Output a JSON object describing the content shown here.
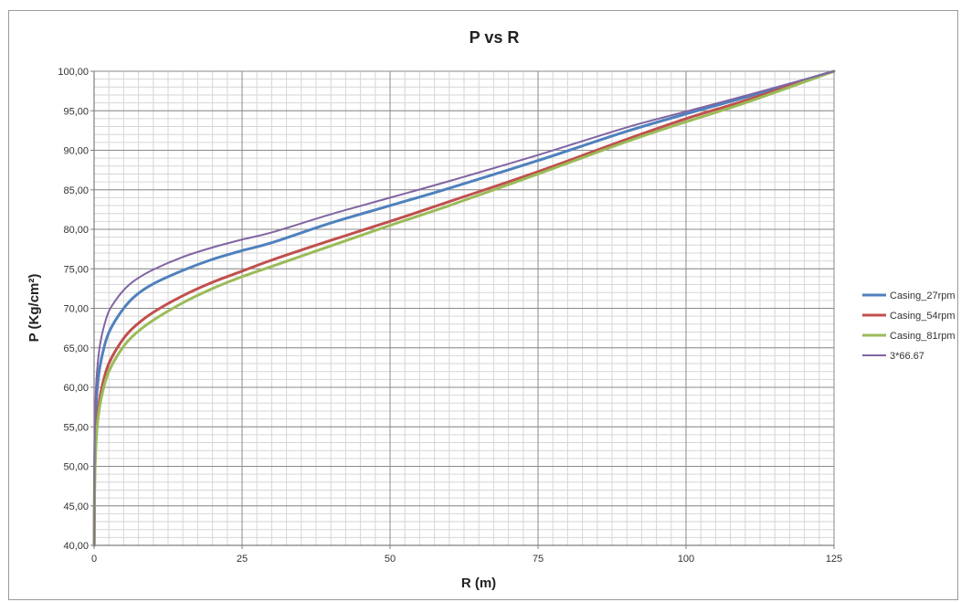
{
  "chart_data": {
    "type": "line",
    "title": "P vs R",
    "xlabel": "R (m)",
    "ylabel": "P (Kg/cm²)",
    "xlim": [
      0,
      125
    ],
    "ylim": [
      40,
      100
    ],
    "x_ticks": [
      "0",
      "25",
      "50",
      "75",
      "100",
      "125"
    ],
    "y_ticks": [
      "40,00",
      "45,00",
      "50,00",
      "55,00",
      "60,00",
      "65,00",
      "70,00",
      "75,00",
      "80,00",
      "85,00",
      "90,00",
      "95,00",
      "100,00"
    ],
    "grid": true,
    "legend_position": "right",
    "series": [
      {
        "name": "Casing_27rpm",
        "color": "#4F81BD",
        "x": [
          0.02,
          0.1,
          0.25,
          0.5,
          1,
          2,
          3,
          5,
          7,
          10,
          15,
          20,
          25,
          30,
          40,
          50,
          60,
          75,
          90,
          100,
          110,
          125
        ],
        "y": [
          40.0,
          51.0,
          56.0,
          59.5,
          62.7,
          65.9,
          67.7,
          70.0,
          71.6,
          73.1,
          74.8,
          76.2,
          77.3,
          78.3,
          80.8,
          83.0,
          85.2,
          88.7,
          92.4,
          94.6,
          96.7,
          100.0
        ]
      },
      {
        "name": "Casing_54rpm",
        "color": "#C0504D",
        "x": [
          0.02,
          0.1,
          0.25,
          0.5,
          1,
          2,
          3,
          5,
          7,
          10,
          15,
          20,
          25,
          30,
          40,
          50,
          60,
          75,
          90,
          100,
          110,
          125
        ],
        "y": [
          40.0,
          48.5,
          52.5,
          55.7,
          58.8,
          62.0,
          63.8,
          66.2,
          67.8,
          69.5,
          71.6,
          73.3,
          74.7,
          76.1,
          78.6,
          81.0,
          83.5,
          87.3,
          91.4,
          94.0,
          96.3,
          100.0
        ]
      },
      {
        "name": "Casing_81rpm",
        "color": "#9BBB59",
        "x": [
          0.02,
          0.1,
          0.25,
          0.5,
          1,
          2,
          3,
          5,
          7,
          10,
          15,
          20,
          25,
          30,
          40,
          50,
          60,
          75,
          90,
          100,
          110,
          125
        ],
        "y": [
          40.0,
          47.5,
          51.5,
          54.8,
          57.8,
          61.0,
          62.8,
          65.2,
          66.8,
          68.5,
          70.7,
          72.5,
          74.0,
          75.3,
          77.9,
          80.5,
          83.0,
          87.0,
          91.1,
          93.6,
          96.0,
          100.0
        ]
      },
      {
        "name": "3*66.67",
        "color": "#8064A2",
        "x": [
          0.02,
          0.1,
          0.25,
          0.5,
          1,
          2,
          3,
          5,
          7,
          10,
          15,
          20,
          25,
          30,
          40,
          50,
          60,
          75,
          90,
          100,
          110,
          125
        ],
        "y": [
          40.0,
          53.0,
          58.5,
          62.0,
          65.4,
          68.6,
          70.3,
          72.3,
          73.6,
          74.9,
          76.5,
          77.7,
          78.7,
          79.6,
          81.9,
          84.0,
          86.1,
          89.4,
          92.9,
          94.9,
          96.9,
          100.0
        ]
      }
    ]
  }
}
